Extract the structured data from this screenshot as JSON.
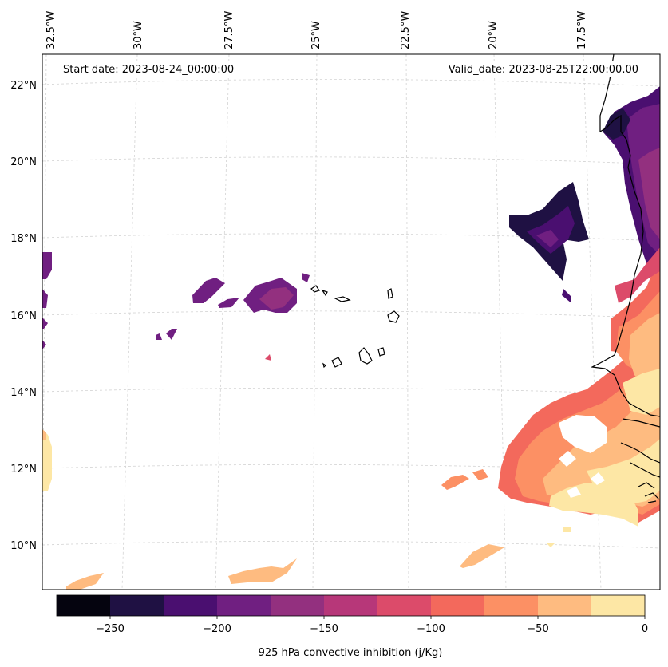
{
  "annotations": {
    "start_date": "Start date: 2023-08-24_00:00:00",
    "valid_date": "Valid_date: 2023-08-25T22:00:00.00"
  },
  "longitude_labels": [
    "32.5°W",
    "30°W",
    "27.5°W",
    "25°W",
    "22.5°W",
    "20°W",
    "17.5°W"
  ],
  "latitude_labels": [
    "22°N",
    "20°N",
    "18°N",
    "16°N",
    "14°N",
    "12°N",
    "10°N"
  ],
  "colorbar": {
    "label": "925 hPa convective inhibition (j/Kg)",
    "ticks": [
      "−250",
      "−200",
      "−150",
      "−100",
      "−50",
      "0"
    ],
    "levels": [
      -275,
      -250,
      -225,
      -200,
      -175,
      -150,
      -125,
      -100,
      -75,
      -50,
      -25,
      0
    ],
    "colors": [
      "#05040f",
      "#1f1143",
      "#4a0f70",
      "#701f81",
      "#93307f",
      "#b73779",
      "#dc4b6a",
      "#f3695c",
      "#fc9064",
      "#febb80",
      "#fde7a5"
    ]
  },
  "colors": {
    "coastline": "#000000",
    "gridline": "#d3d3d3",
    "frame": "#000000"
  }
}
